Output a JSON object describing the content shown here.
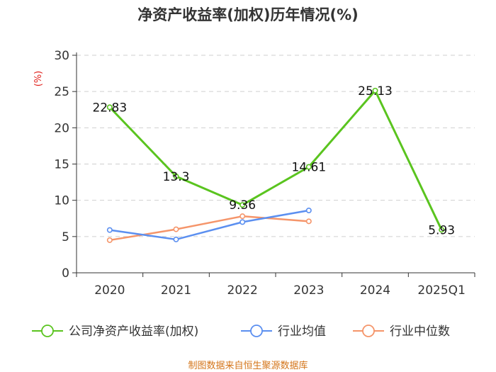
{
  "chart_data": {
    "type": "line",
    "title": "净资产收益率(加权)历年情况(%)",
    "ylabel": "(%)",
    "xlabel": "",
    "ylim": [
      0,
      30
    ],
    "yticks": [
      0,
      5,
      10,
      15,
      20,
      25,
      30
    ],
    "grid": true,
    "categories": [
      "2020",
      "2021",
      "2022",
      "2023",
      "2024",
      "2025Q1"
    ],
    "series": [
      {
        "name": "公司净资产收益率(加权)",
        "color": "#5ac41f",
        "values": [
          22.83,
          13.3,
          9.36,
          14.61,
          25.13,
          5.93
        ],
        "labels": [
          "22.83",
          "13.3",
          "9.36",
          "14.61",
          "25.13",
          "5.93"
        ]
      },
      {
        "name": "行业均值",
        "color": "#5b8ff0",
        "values": [
          5.9,
          4.6,
          7.0,
          8.6,
          null,
          null
        ]
      },
      {
        "name": "行业中位数",
        "color": "#f5956a",
        "values": [
          4.5,
          6.0,
          7.8,
          7.1,
          null,
          null
        ]
      }
    ],
    "legend_position": "bottom"
  },
  "source": "制图数据来自恒生聚源数据库"
}
